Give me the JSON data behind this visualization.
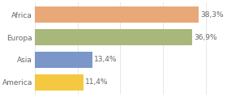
{
  "categories": [
    "America",
    "Asia",
    "Europa",
    "Africa"
  ],
  "values": [
    11.4,
    13.4,
    36.9,
    38.3
  ],
  "bar_colors": [
    "#f5c842",
    "#7b96c8",
    "#a8b87a",
    "#e8a878"
  ],
  "labels": [
    "11,4%",
    "13,4%",
    "36,9%",
    "38,3%"
  ],
  "xlim": [
    0,
    44
  ],
  "bar_height": 0.72,
  "label_fontsize": 6.5,
  "tick_fontsize": 6.5,
  "label_color": "#666666",
  "tick_color": "#666666",
  "grid_color": "#dddddd",
  "background_color": "#ffffff",
  "figsize": [
    2.8,
    1.2
  ],
  "dpi": 100
}
